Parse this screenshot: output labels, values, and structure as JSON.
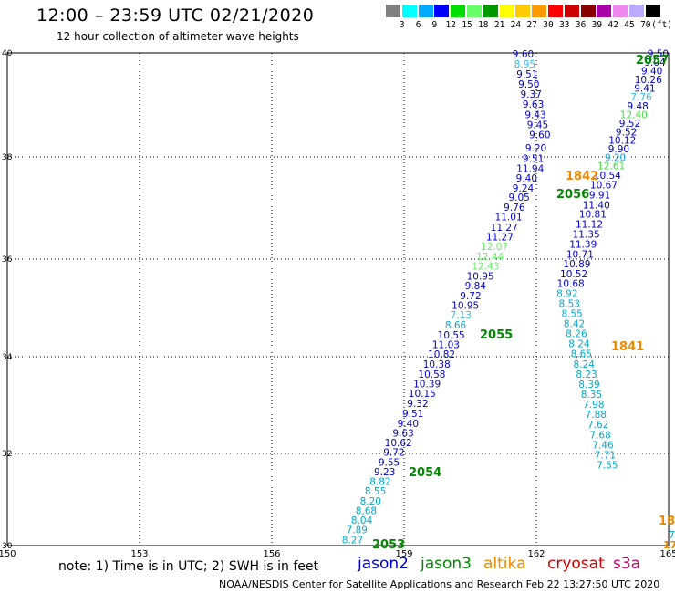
{
  "title": "12:00 – 23:59 UTC 02/21/2020",
  "subtitle": "12 hour collection of altimeter wave heights",
  "scale": {
    "colors": [
      "#808080",
      "#00ffff",
      "#00aaff",
      "#0000ff",
      "#00dd00",
      "#66ff66",
      "#009900",
      "#ffff00",
      "#ffcc00",
      "#ff9900",
      "#ff0000",
      "#cc0000",
      "#880000",
      "#aa00aa",
      "#ee88ee",
      "#bbaaff",
      "#000000"
    ],
    "labels": [
      "3",
      "6",
      "9",
      "12",
      "15",
      "18",
      "21",
      "24",
      "27",
      "30",
      "33",
      "36",
      "39",
      "42",
      "45",
      "70",
      "(ft)"
    ]
  },
  "axes": {
    "lon_labels": [
      "150",
      "153",
      "156",
      "159",
      "162",
      "165"
    ],
    "lat_labels": [
      "40",
      "38",
      "36",
      "34",
      "32",
      "30"
    ]
  },
  "passes": [
    {
      "label": "2057",
      "label_color": "#008800",
      "points": [
        {
          "lat": 39.9,
          "lon": 164.76,
          "value": "9.50",
          "color": "#0000cc"
        },
        {
          "lat": 39.68,
          "lon": 164.69,
          "value": "9.04",
          "color": "#0000cc"
        },
        {
          "lat": 39.47,
          "lon": 164.62,
          "value": "9.40",
          "color": "#0000cc"
        },
        {
          "lat": 39.25,
          "lon": 164.54,
          "value": "10.26",
          "color": "#0000cc"
        },
        {
          "lat": 39.04,
          "lon": 164.46,
          "value": "9.41",
          "color": "#0000cc"
        },
        {
          "lat": 38.83,
          "lon": 164.38,
          "value": "7.76",
          "color": "#33bbee"
        },
        {
          "lat": 38.6,
          "lon": 164.3,
          "value": "9.48",
          "color": "#0000cc"
        },
        {
          "lat": 38.39,
          "lon": 164.21,
          "value": "12.40",
          "color": "#44dd44"
        },
        {
          "lat": 38.17,
          "lon": 164.12,
          "value": "9.52",
          "color": "#0000cc"
        },
        {
          "lat": 37.96,
          "lon": 164.04,
          "value": "9.52",
          "color": "#0000cc"
        },
        {
          "lat": 37.75,
          "lon": 163.95,
          "value": "10.12",
          "color": "#0000cc"
        },
        {
          "lat": 37.54,
          "lon": 163.87,
          "value": "9.90",
          "color": "#0000cc"
        },
        {
          "lat": 37.32,
          "lon": 163.79,
          "value": "9.20",
          "color": "#00aaff"
        },
        {
          "lat": 37.12,
          "lon": 163.7,
          "value": "12.61",
          "color": "#44dd44"
        },
        {
          "lat": 36.88,
          "lon": 163.61,
          "value": "10.54",
          "color": "#0000cc"
        },
        {
          "lat": 36.65,
          "lon": 163.53,
          "value": "10.67",
          "color": "#0000cc"
        },
        {
          "lat": 36.4,
          "lon": 163.44,
          "value": "9.91",
          "color": "#0000cc"
        },
        {
          "lat": 36.15,
          "lon": 163.36,
          "value": "11.40",
          "color": "#0000cc"
        },
        {
          "lat": 35.92,
          "lon": 163.28,
          "value": "10.81",
          "color": "#0000cc"
        },
        {
          "lat": 35.67,
          "lon": 163.2,
          "value": "11.12",
          "color": "#0000cc"
        },
        {
          "lat": 35.42,
          "lon": 163.13,
          "value": "11.35",
          "color": "#0000cc"
        },
        {
          "lat": 35.18,
          "lon": 163.06,
          "value": "11.39",
          "color": "#0000cc"
        },
        {
          "lat": 34.93,
          "lon": 162.99,
          "value": "10.71",
          "color": "#0000cc"
        },
        {
          "lat": 34.69,
          "lon": 162.92,
          "value": "10.89",
          "color": "#0000cc"
        },
        {
          "lat": 34.44,
          "lon": 162.85,
          "value": "10.52",
          "color": "#0000cc"
        },
        {
          "lat": 34.2,
          "lon": 162.78,
          "value": "10.68",
          "color": "#0000cc"
        }
      ]
    },
    {
      "label": "1841",
      "label_color": "#ee8800",
      "points": [
        {
          "lat": 33.96,
          "lon": 162.7,
          "value": "8.92",
          "color": "#00aacc"
        },
        {
          "lat": 33.71,
          "lon": 162.75,
          "value": "8.53",
          "color": "#00aacc"
        },
        {
          "lat": 33.46,
          "lon": 162.81,
          "value": "8.55",
          "color": "#00aacc"
        },
        {
          "lat": 33.21,
          "lon": 162.86,
          "value": "8.42",
          "color": "#00aacc"
        },
        {
          "lat": 32.96,
          "lon": 162.91,
          "value": "8.26",
          "color": "#00aacc"
        },
        {
          "lat": 32.71,
          "lon": 162.97,
          "value": "8.24",
          "color": "#00aacc"
        },
        {
          "lat": 32.46,
          "lon": 163.02,
          "value": "8.65",
          "color": "#00aacc"
        },
        {
          "lat": 32.21,
          "lon": 163.08,
          "value": "8.24",
          "color": "#00aacc"
        },
        {
          "lat": 31.96,
          "lon": 163.14,
          "value": "8.23",
          "color": "#00aacc"
        },
        {
          "lat": 31.71,
          "lon": 163.2,
          "value": "8.39",
          "color": "#00aacc"
        },
        {
          "lat": 31.46,
          "lon": 163.25,
          "value": "8.35",
          "color": "#00aacc"
        },
        {
          "lat": 31.21,
          "lon": 163.3,
          "value": "7.98",
          "color": "#00aacc"
        },
        {
          "lat": 30.96,
          "lon": 163.35,
          "value": "7.88",
          "color": "#00aacc"
        },
        {
          "lat": 30.71,
          "lon": 163.4,
          "value": "7.62",
          "color": "#00aacc"
        },
        {
          "lat": 30.46,
          "lon": 163.45,
          "value": "7.68",
          "color": "#00aacc"
        },
        {
          "lat": 30.21,
          "lon": 163.51,
          "value": "7.46",
          "color": "#00aacc"
        },
        {
          "lat": 29.96,
          "lon": 163.56,
          "value": "7.71",
          "color": "#00aacc"
        },
        {
          "lat": 29.71,
          "lon": 163.61,
          "value": "7.55",
          "color": "#00aacc"
        }
      ]
    },
    {
      "label": "1842",
      "label_color": "#ee8800",
      "points": [
        {
          "lat": 39.89,
          "lon": 161.7,
          "value": "9.60",
          "color": "#0000cc"
        },
        {
          "lat": 39.64,
          "lon": 161.74,
          "value": "8.95",
          "color": "#33bbee"
        },
        {
          "lat": 39.39,
          "lon": 161.79,
          "value": "9.51",
          "color": "#0000cc"
        },
        {
          "lat": 39.14,
          "lon": 161.83,
          "value": "9.50",
          "color": "#0000cc"
        },
        {
          "lat": 38.89,
          "lon": 161.88,
          "value": "9.37",
          "color": "#0000cc"
        },
        {
          "lat": 38.64,
          "lon": 161.93,
          "value": "9.63",
          "color": "#0000cc"
        },
        {
          "lat": 38.39,
          "lon": 161.98,
          "value": "9.43",
          "color": "#0000cc"
        },
        {
          "lat": 38.14,
          "lon": 162.03,
          "value": "9.45",
          "color": "#0000cc"
        },
        {
          "lat": 37.89,
          "lon": 162.08,
          "value": "9.60",
          "color": "#0000cc"
        }
      ]
    },
    {
      "label": "2056",
      "label_color": "#008800",
      "points": [
        {
          "lat": 37.56,
          "lon": 161.99,
          "value": "9.20",
          "color": "#0000cc"
        },
        {
          "lat": 37.3,
          "lon": 161.93,
          "value": "9.51",
          "color": "#0000cc"
        },
        {
          "lat": 37.05,
          "lon": 161.86,
          "value": "11.94",
          "color": "#0000cc"
        },
        {
          "lat": 36.82,
          "lon": 161.78,
          "value": "9.40",
          "color": "#0000cc"
        },
        {
          "lat": 36.57,
          "lon": 161.7,
          "value": "9.24",
          "color": "#0000cc"
        },
        {
          "lat": 36.34,
          "lon": 161.61,
          "value": "9.05",
          "color": "#0000cc"
        },
        {
          "lat": 36.09,
          "lon": 161.5,
          "value": "9.76",
          "color": "#0000cc"
        },
        {
          "lat": 35.85,
          "lon": 161.37,
          "value": "11.01",
          "color": "#0000cc"
        },
        {
          "lat": 35.6,
          "lon": 161.27,
          "value": "11.27",
          "color": "#0000cc"
        },
        {
          "lat": 35.36,
          "lon": 161.17,
          "value": "11.27",
          "color": "#0000cc"
        },
        {
          "lat": 35.12,
          "lon": 161.05,
          "value": "12.07",
          "color": "#66ee66"
        },
        {
          "lat": 34.87,
          "lon": 160.95,
          "value": "12.44",
          "color": "#66ee66"
        },
        {
          "lat": 34.63,
          "lon": 160.85,
          "value": "12.43",
          "color": "#66ee66"
        },
        {
          "lat": 34.39,
          "lon": 160.73,
          "value": "10.95",
          "color": "#0000cc"
        },
        {
          "lat": 34.15,
          "lon": 160.62,
          "value": "9.84",
          "color": "#0000cc"
        },
        {
          "lat": 33.9,
          "lon": 160.51,
          "value": "9.72",
          "color": "#0000cc"
        },
        {
          "lat": 33.66,
          "lon": 160.39,
          "value": "10.95",
          "color": "#0000cc"
        },
        {
          "lat": 33.42,
          "lon": 160.29,
          "value": "7.13",
          "color": "#33bbee"
        }
      ]
    },
    {
      "label": "2055",
      "label_color": "#008800",
      "points": [
        {
          "lat": 33.18,
          "lon": 160.17,
          "value": "8.66",
          "color": "#00aacc"
        },
        {
          "lat": 32.93,
          "lon": 160.07,
          "value": "10.55",
          "color": "#0000cc"
        },
        {
          "lat": 32.69,
          "lon": 159.95,
          "value": "11.03",
          "color": "#0000cc"
        },
        {
          "lat": 32.45,
          "lon": 159.85,
          "value": "10.82",
          "color": "#0000cc"
        },
        {
          "lat": 32.21,
          "lon": 159.74,
          "value": "10.38",
          "color": "#0000cc"
        },
        {
          "lat": 31.96,
          "lon": 159.63,
          "value": "10.58",
          "color": "#0000cc"
        },
        {
          "lat": 31.72,
          "lon": 159.52,
          "value": "10.39",
          "color": "#0000cc"
        },
        {
          "lat": 31.48,
          "lon": 159.41,
          "value": "10.15",
          "color": "#0000cc"
        },
        {
          "lat": 31.23,
          "lon": 159.31,
          "value": "9.32",
          "color": "#0000cc"
        },
        {
          "lat": 30.99,
          "lon": 159.2,
          "value": "9.51",
          "color": "#0000cc"
        },
        {
          "lat": 30.74,
          "lon": 159.09,
          "value": "9.40",
          "color": "#0000cc"
        },
        {
          "lat": 30.5,
          "lon": 158.98,
          "value": "9.63",
          "color": "#0000cc"
        },
        {
          "lat": 30.26,
          "lon": 158.87,
          "value": "10.62",
          "color": "#0000cc"
        }
      ]
    },
    {
      "label": "2054",
      "label_color": "#008800",
      "points": [
        {
          "lat": 30.02,
          "lon": 158.77,
          "value": "9.72",
          "color": "#0000cc"
        },
        {
          "lat": 29.78,
          "lon": 158.66,
          "value": "9.55",
          "color": "#0000cc"
        },
        {
          "lat": 29.54,
          "lon": 158.56,
          "value": "9.23",
          "color": "#0000cc"
        },
        {
          "lat": 29.3,
          "lon": 158.46,
          "value": "8.82",
          "color": "#00aacc"
        },
        {
          "lat": 29.06,
          "lon": 158.35,
          "value": "8.55",
          "color": "#00aacc"
        },
        {
          "lat": 28.82,
          "lon": 158.24,
          "value": "8.20",
          "color": "#00aacc"
        },
        {
          "lat": 28.58,
          "lon": 158.14,
          "value": "8.68",
          "color": "#00aacc"
        },
        {
          "lat": 28.34,
          "lon": 158.04,
          "value": "8.04",
          "color": "#00aacc"
        },
        {
          "lat": 28.1,
          "lon": 157.93,
          "value": "7.89",
          "color": "#00aacc"
        },
        {
          "lat": 27.86,
          "lon": 157.83,
          "value": "8.27",
          "color": "#00aacc"
        }
      ]
    },
    {
      "label": "2053",
      "label_color": "#008800",
      "points": []
    }
  ],
  "edge_labels": [
    {
      "text": "18",
      "color": "#ee8800"
    },
    {
      "text": "7",
      "color": "#00aacc"
    },
    {
      "text": "17",
      "color": "#ee8800"
    }
  ],
  "footer": {
    "note": "note: 1) Time is in UTC; 2) SWH is in feet",
    "satellites": [
      {
        "name": "jason2",
        "color": "#0000cc"
      },
      {
        "name": "jason3",
        "color": "#008800"
      },
      {
        "name": "altika",
        "color": "#ee8800"
      },
      {
        "name": "cryosat",
        "color": "#cc0000"
      },
      {
        "name": "s3a",
        "color": "#cc0066"
      }
    ],
    "credit": "NOAA/NESDIS Center for Satellite Applications and Research    Feb 22 13:27:50 UTC 2020"
  }
}
